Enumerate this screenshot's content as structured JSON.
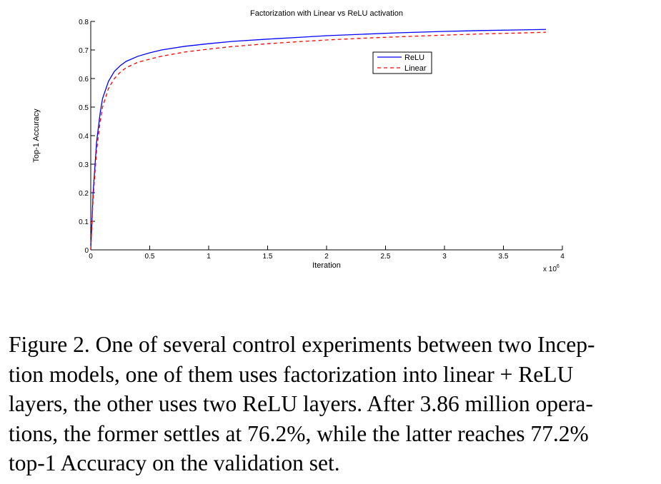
{
  "chart_data": {
    "type": "line",
    "title": "Factorization with Linear vs ReLU activation",
    "xlabel": "Iteration",
    "ylabel": "Top-1 Accuracy",
    "x_multiplier_label": "x 10",
    "x_multiplier_exponent": "6",
    "xlim": [
      0,
      4
    ],
    "ylim": [
      0,
      0.8
    ],
    "x_ticks": [
      0,
      0.5,
      1,
      1.5,
      2,
      2.5,
      3,
      3.5,
      4
    ],
    "x_tick_labels": [
      "0",
      "0.5",
      "1",
      "1.5",
      "2",
      "2.5",
      "3",
      "3.5",
      "4"
    ],
    "y_ticks": [
      0,
      0.1,
      0.2,
      0.3,
      0.4,
      0.5,
      0.6,
      0.7,
      0.8
    ],
    "y_tick_labels": [
      "0",
      "0.1",
      "0.2",
      "0.3",
      "0.4",
      "0.5",
      "0.6",
      "0.7",
      "0.8"
    ],
    "legend_position": "upper-right",
    "series": [
      {
        "name": "ReLU",
        "color": "#0000ff",
        "style": "solid",
        "x": [
          0,
          0.02,
          0.05,
          0.08,
          0.1,
          0.15,
          0.2,
          0.25,
          0.3,
          0.4,
          0.5,
          0.6,
          0.8,
          1.0,
          1.2,
          1.5,
          1.8,
          2.0,
          2.3,
          2.6,
          3.0,
          3.3,
          3.6,
          3.86
        ],
        "values": [
          0.0,
          0.2,
          0.38,
          0.48,
          0.53,
          0.59,
          0.625,
          0.645,
          0.66,
          0.678,
          0.69,
          0.7,
          0.713,
          0.722,
          0.73,
          0.738,
          0.745,
          0.75,
          0.755,
          0.76,
          0.765,
          0.768,
          0.77,
          0.772
        ]
      },
      {
        "name": "Linear",
        "color": "#ff0000",
        "style": "dashed",
        "x": [
          0,
          0.02,
          0.05,
          0.08,
          0.1,
          0.15,
          0.2,
          0.25,
          0.3,
          0.4,
          0.5,
          0.6,
          0.8,
          1.0,
          1.2,
          1.5,
          1.8,
          2.0,
          2.3,
          2.6,
          3.0,
          3.3,
          3.6,
          3.86
        ],
        "values": [
          0.0,
          0.18,
          0.35,
          0.45,
          0.5,
          0.565,
          0.6,
          0.622,
          0.638,
          0.657,
          0.668,
          0.678,
          0.693,
          0.703,
          0.712,
          0.722,
          0.73,
          0.735,
          0.741,
          0.746,
          0.752,
          0.756,
          0.759,
          0.762
        ]
      }
    ]
  },
  "caption": {
    "line1": "Figure 2. One of several control experiments between two Incep-",
    "line2": "tion models, one of them uses factorization into linear + ReLU",
    "line3": "layers, the other uses two ReLU layers. After 3.86 million opera-",
    "line4": "tions, the former settles at 76.2%, while the latter reaches 77.2%",
    "line5": "top-1 Accuracy on the validation set."
  }
}
